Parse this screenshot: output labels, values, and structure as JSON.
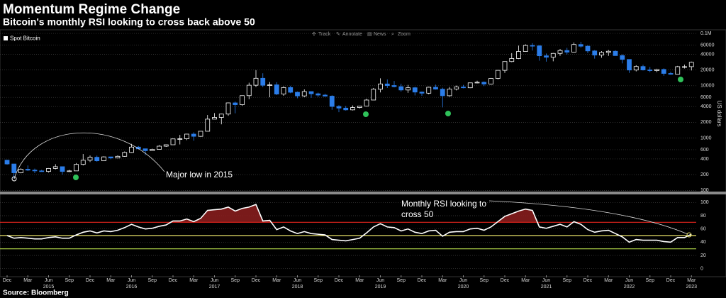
{
  "toolbar": [
    "Track",
    "Annotate",
    "News",
    "Zoom"
  ],
  "chart_data": [
    {
      "type": "candlestick",
      "title": "Momentum Regime Change",
      "subtitle": "Bitcoin's monthly RSI looking to cross back above 50",
      "source": "Source: Bloomberg",
      "ylabel": "US dollars",
      "annotation": "Major low in 2015",
      "legend": "upper left",
      "log_scale": true,
      "grid": true,
      "up_color": "#ffffff",
      "down_color": "#2b7de9",
      "categories": [
        "2014-12",
        "2015-01",
        "2015-02",
        "2015-03",
        "2015-04",
        "2015-05",
        "2015-06",
        "2015-07",
        "2015-08",
        "2015-09",
        "2015-10",
        "2015-11",
        "2015-12",
        "2016-01",
        "2016-02",
        "2016-03",
        "2016-04",
        "2016-05",
        "2016-06",
        "2016-07",
        "2016-08",
        "2016-09",
        "2016-10",
        "2016-11",
        "2016-12",
        "2017-01",
        "2017-02",
        "2017-03",
        "2017-04",
        "2017-05",
        "2017-06",
        "2017-07",
        "2017-08",
        "2017-09",
        "2017-10",
        "2017-11",
        "2017-12",
        "2018-01",
        "2018-02",
        "2018-03",
        "2018-04",
        "2018-05",
        "2018-06",
        "2018-07",
        "2018-08",
        "2018-09",
        "2018-10",
        "2018-11",
        "2018-12",
        "2019-01",
        "2019-02",
        "2019-03",
        "2019-04",
        "2019-05",
        "2019-06",
        "2019-07",
        "2019-08",
        "2019-09",
        "2019-10",
        "2019-11",
        "2019-12",
        "2020-01",
        "2020-02",
        "2020-03",
        "2020-04",
        "2020-05",
        "2020-06",
        "2020-07",
        "2020-08",
        "2020-09",
        "2020-10",
        "2020-11",
        "2020-12",
        "2021-01",
        "2021-02",
        "2021-03",
        "2021-04",
        "2021-05",
        "2021-06",
        "2021-07",
        "2021-08",
        "2021-09",
        "2021-10",
        "2021-11",
        "2021-12",
        "2022-01",
        "2022-02",
        "2022-03",
        "2022-04",
        "2022-05",
        "2022-06",
        "2022-07",
        "2022-08",
        "2022-09",
        "2022-10",
        "2022-11",
        "2022-12",
        "2023-01",
        "2023-02",
        "2023-03"
      ],
      "series": [
        {
          "name": "Spot Bitcoin",
          "open": [
            378,
            320,
            217,
            254,
            244,
            236,
            230,
            263,
            284,
            230,
            236,
            314,
            377,
            430,
            368,
            437,
            416,
            448,
            531,
            673,
            624,
            574,
            609,
            700,
            745,
            964,
            971,
            1191,
            1080,
            1350,
            2300,
            2480,
            2875,
            4700,
            4340,
            6470,
            10230,
            13880,
            10220,
            10400,
            6930,
            9240,
            7500,
            6390,
            7730,
            7020,
            6630,
            6320,
            4020,
            3740,
            3460,
            3830,
            4100,
            5330,
            8570,
            10820,
            10090,
            9600,
            8290,
            9150,
            7560,
            7200,
            9350,
            8600,
            6440,
            8630,
            9450,
            9140,
            11350,
            11650,
            10780,
            13800,
            19700,
            28990,
            33110,
            45140,
            58800,
            57750,
            37330,
            35040,
            41460,
            47100,
            43790,
            61300,
            56900,
            46210,
            38480,
            43190,
            45540,
            37640,
            31790,
            19940,
            23300,
            20050,
            19430,
            20490,
            17170,
            16550,
            23130,
            23150
          ],
          "high": [
            382,
            320,
            265,
            300,
            261,
            247,
            267,
            317,
            285,
            247,
            334,
            496,
            465,
            462,
            448,
            439,
            466,
            554,
            775,
            704,
            627,
            628,
            735,
            757,
            974,
            1150,
            1209,
            1290,
            1350,
            2760,
            3000,
            2920,
            4770,
            4980,
            6470,
            11430,
            19870,
            17310,
            11780,
            11680,
            9750,
            9990,
            7760,
            8500,
            7760,
            7400,
            7040,
            6570,
            4240,
            4110,
            4200,
            4130,
            5640,
            9070,
            13880,
            13200,
            12330,
            10950,
            10370,
            9510,
            7750,
            9580,
            10500,
            9190,
            9460,
            10080,
            10380,
            11440,
            12470,
            12070,
            14100,
            19860,
            29300,
            41950,
            58350,
            61780,
            64860,
            59590,
            41330,
            42320,
            50500,
            52920,
            67000,
            69000,
            59050,
            47990,
            45820,
            48240,
            47450,
            39840,
            31960,
            24670,
            25210,
            22800,
            21080,
            21450,
            18390,
            23960,
            25250,
            28900
          ],
          "low": [
            310,
            170,
            212,
            235,
            214,
            227,
            220,
            253,
            199,
            225,
            236,
            300,
            348,
            354,
            363,
            394,
            410,
            439,
            520,
            608,
            471,
            570,
            607,
            679,
            745,
            755,
            914,
            890,
            1060,
            1350,
            2300,
            1830,
            2670,
            2970,
            4140,
            5520,
            9440,
            9400,
            6000,
            6630,
            6430,
            7200,
            5770,
            6080,
            5880,
            6110,
            6200,
            3470,
            3120,
            3350,
            3370,
            3690,
            4090,
            5330,
            7450,
            9070,
            9320,
            7710,
            7300,
            6520,
            6430,
            6870,
            8440,
            3850,
            6150,
            8130,
            8900,
            9010,
            11110,
            9850,
            10540,
            13240,
            17600,
            28130,
            32300,
            44950,
            47040,
            30070,
            28800,
            29280,
            37360,
            39600,
            43290,
            53330,
            42000,
            32950,
            34320,
            37160,
            37700,
            26700,
            17590,
            18780,
            19540,
            18150,
            18190,
            15480,
            16260,
            16500,
            21400,
            19570
          ],
          "close": [
            320,
            217,
            254,
            244,
            236,
            230,
            263,
            284,
            230,
            236,
            314,
            377,
            430,
            368,
            437,
            416,
            448,
            531,
            673,
            624,
            574,
            609,
            700,
            745,
            964,
            971,
            1191,
            1080,
            1350,
            2300,
            2480,
            2875,
            4700,
            4340,
            6470,
            10230,
            13880,
            10220,
            10400,
            6930,
            9240,
            7500,
            6390,
            7730,
            7020,
            6630,
            6320,
            4020,
            3740,
            3460,
            3830,
            4100,
            5330,
            8570,
            10820,
            10090,
            9600,
            8290,
            9150,
            7560,
            7200,
            9350,
            8600,
            6440,
            8630,
            9450,
            9140,
            11350,
            11650,
            10780,
            13800,
            19700,
            28990,
            33110,
            45140,
            58800,
            57750,
            37330,
            35040,
            41460,
            47100,
            43790,
            61300,
            56900,
            46210,
            38480,
            43190,
            45540,
            37640,
            31790,
            19940,
            23300,
            20050,
            19430,
            20490,
            17170,
            16550,
            23130,
            23150,
            28040
          ]
        }
      ],
      "ylim": [
        95,
        110000
      ],
      "yticks": [
        100,
        200,
        400,
        600,
        1000,
        2000,
        4000,
        6000,
        10000,
        20000,
        40000,
        60000,
        {
          "value": 100000,
          "label": "0.1M"
        }
      ]
    },
    {
      "type": "line",
      "annotation": "Monthly RSI looking to cross 50",
      "color": "#ffffff",
      "grid": true,
      "values": [
        50,
        46,
        47,
        46,
        45,
        45,
        47,
        48,
        46,
        46,
        51,
        55,
        57,
        54,
        57,
        56,
        58,
        62,
        67,
        63,
        60,
        61,
        64,
        66,
        72,
        72,
        75,
        71,
        76,
        88,
        89,
        90,
        93,
        87,
        91,
        93,
        97,
        72,
        73,
        59,
        63,
        57,
        53,
        56,
        53,
        52,
        51,
        44,
        43,
        42,
        44,
        46,
        54,
        63,
        68,
        63,
        62,
        57,
        60,
        55,
        53,
        57,
        58,
        49,
        55,
        56,
        56,
        60,
        61,
        58,
        63,
        71,
        79,
        83,
        87,
        90,
        88,
        63,
        61,
        64,
        67,
        63,
        71,
        67,
        59,
        55,
        57,
        58,
        53,
        48,
        40,
        44,
        43,
        43,
        43,
        41,
        40,
        47,
        47,
        52
      ],
      "thresholds": [
        {
          "value": 70,
          "color": "#e3241d",
          "fill": "#8e1f1f"
        },
        {
          "value": 50,
          "color": "#e9e36a"
        },
        {
          "value": 30,
          "color": "#b9de4b"
        }
      ],
      "ylim": [
        -10,
        110
      ],
      "yticks": [
        0,
        20,
        40,
        60,
        80,
        100
      ],
      "xticks": [
        {
          "value": "2014-12",
          "label": "Dec"
        },
        {
          "value": "2015-03",
          "label": "Mar"
        },
        {
          "value": "2015-06",
          "label": "Jun"
        },
        {
          "value": "2015-09",
          "label": "Sep"
        },
        {
          "value": "2015-12",
          "label": "Dec"
        },
        {
          "value": "2016-03",
          "label": "Mar"
        },
        {
          "value": "2016-06",
          "label": "Jun"
        },
        {
          "value": "2016-09",
          "label": "Sep"
        },
        {
          "value": "2016-12",
          "label": "Dec"
        },
        {
          "value": "2017-03",
          "label": "Mar"
        },
        {
          "value": "2017-06",
          "label": "Jun"
        },
        {
          "value": "2017-09",
          "label": "Sep"
        },
        {
          "value": "2017-12",
          "label": "Dec"
        },
        {
          "value": "2018-03",
          "label": "Mar"
        },
        {
          "value": "2018-06",
          "label": "Jun"
        },
        {
          "value": "2018-09",
          "label": "Sep"
        },
        {
          "value": "2018-12",
          "label": "Dec"
        },
        {
          "value": "2019-03",
          "label": "Mar"
        },
        {
          "value": "2019-06",
          "label": "Jun"
        },
        {
          "value": "2019-09",
          "label": "Sep"
        },
        {
          "value": "2019-12",
          "label": "Dec"
        },
        {
          "value": "2020-03",
          "label": "Mar"
        },
        {
          "value": "2020-06",
          "label": "Jun"
        },
        {
          "value": "2020-09",
          "label": "Sep"
        },
        {
          "value": "2020-12",
          "label": "Dec"
        },
        {
          "value": "2021-03",
          "label": "Mar"
        },
        {
          "value": "2021-06",
          "label": "Jun"
        },
        {
          "value": "2021-09",
          "label": "Sep"
        },
        {
          "value": "2021-12",
          "label": "Dec"
        },
        {
          "value": "2022-03",
          "label": "Mar"
        },
        {
          "value": "2022-06",
          "label": "Jun"
        },
        {
          "value": "2022-09",
          "label": "Sep"
        },
        {
          "value": "2022-12",
          "label": "Dec"
        },
        {
          "value": "2023-03",
          "label": "Mar"
        }
      ],
      "year_ticks": [
        {
          "value": "2015-06",
          "label": "2015"
        },
        {
          "value": "2016-06",
          "label": "2016"
        },
        {
          "value": "2017-06",
          "label": "2017"
        },
        {
          "value": "2018-06",
          "label": "2018"
        },
        {
          "value": "2019-06",
          "label": "2019"
        },
        {
          "value": "2020-06",
          "label": "2020"
        },
        {
          "value": "2021-06",
          "label": "2021"
        },
        {
          "value": "2022-06",
          "label": "2022"
        },
        {
          "value": "2023-03",
          "label": "2023"
        }
      ]
    }
  ]
}
